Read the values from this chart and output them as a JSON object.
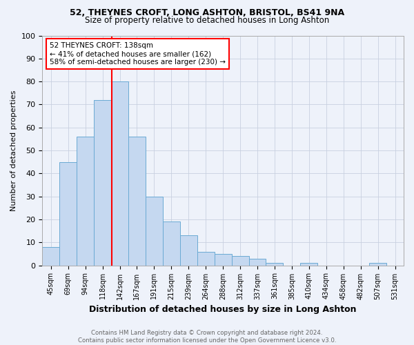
{
  "title1": "52, THEYNES CROFT, LONG ASHTON, BRISTOL, BS41 9NA",
  "title2": "Size of property relative to detached houses in Long Ashton",
  "xlabel": "Distribution of detached houses by size in Long Ashton",
  "ylabel": "Number of detached properties",
  "footer1": "Contains HM Land Registry data © Crown copyright and database right 2024.",
  "footer2": "Contains public sector information licensed under the Open Government Licence v3.0.",
  "categories": [
    "45sqm",
    "69sqm",
    "94sqm",
    "118sqm",
    "142sqm",
    "167sqm",
    "191sqm",
    "215sqm",
    "239sqm",
    "264sqm",
    "288sqm",
    "312sqm",
    "337sqm",
    "361sqm",
    "385sqm",
    "410sqm",
    "434sqm",
    "458sqm",
    "482sqm",
    "507sqm",
    "531sqm"
  ],
  "values": [
    8,
    45,
    56,
    72,
    80,
    56,
    30,
    19,
    13,
    6,
    5,
    4,
    3,
    1,
    0,
    1,
    0,
    0,
    0,
    1,
    0
  ],
  "bar_color": "#c5d8f0",
  "bar_edge_color": "#6aaad4",
  "vline_color": "red",
  "vline_x": 3.52,
  "annotation_text": "52 THEYNES CROFT: 138sqm\n← 41% of detached houses are smaller (162)\n58% of semi-detached houses are larger (230) →",
  "annotation_box_color": "white",
  "annotation_box_edge_color": "red",
  "ylim": [
    0,
    100
  ],
  "yticks": [
    0,
    10,
    20,
    30,
    40,
    50,
    60,
    70,
    80,
    90,
    100
  ],
  "bg_color": "#eef2fa",
  "grid_color": "#c8d0e0",
  "title1_fontsize": 9,
  "title2_fontsize": 8.5,
  "ylabel_fontsize": 8,
  "xlabel_fontsize": 9,
  "tick_fontsize": 7,
  "annot_fontsize": 7.5,
  "footer_fontsize": 6.2
}
